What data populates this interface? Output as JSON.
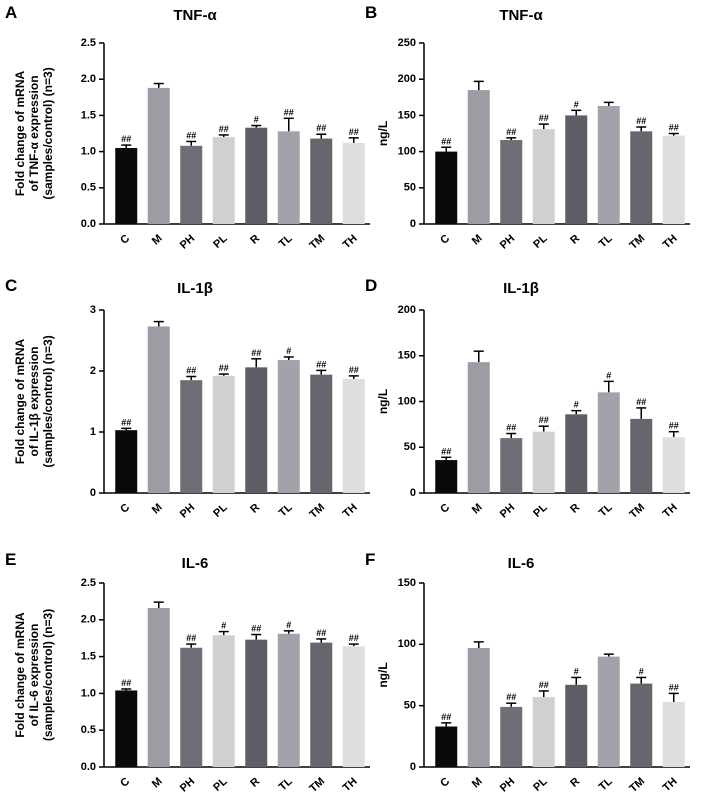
{
  "figure": {
    "colors": {
      "C": "#0a0a0a",
      "M": "#9c9ca4",
      "PH": "#6e6e76",
      "PL": "#d0d0d2",
      "R": "#5e5e66",
      "TL": "#a2a2aa",
      "TM": "#66666e",
      "TH": "#dedee0",
      "axis": "#000000"
    }
  },
  "chart_data": [
    {
      "panel": "A",
      "type": "bar",
      "title": "TNF-α",
      "ylabel_lines": [
        "Fold change of mRNA",
        "of TNF-α expression",
        "(samples/control) (n=3)"
      ],
      "xlabel": "",
      "categories": [
        "C",
        "M",
        "PH",
        "PL",
        "R",
        "TL",
        "TM",
        "TH"
      ],
      "values": [
        1.05,
        1.88,
        1.08,
        1.2,
        1.33,
        1.28,
        1.18,
        1.12
      ],
      "errors": [
        0.04,
        0.06,
        0.06,
        0.03,
        0.03,
        0.18,
        0.06,
        0.07
      ],
      "significance": [
        "##",
        "",
        "##",
        "##",
        "#",
        "##",
        "##",
        "##"
      ],
      "ylim": [
        0,
        2.5
      ],
      "yticks": [
        0.0,
        0.5,
        1.0,
        1.5,
        2.0,
        2.5
      ],
      "ytick_labels": [
        "0.0",
        "0.5",
        "1.0",
        "1.5",
        "2.0",
        "2.5"
      ]
    },
    {
      "panel": "B",
      "type": "bar",
      "title": "TNF-α",
      "ylabel_lines": [
        "ng/L"
      ],
      "xlabel": "",
      "categories": [
        "C",
        "M",
        "PH",
        "PL",
        "R",
        "TL",
        "TM",
        "TH"
      ],
      "values": [
        100,
        185,
        116,
        131,
        150,
        163,
        128,
        122
      ],
      "errors": [
        6,
        12,
        3,
        7,
        7,
        5,
        6,
        3
      ],
      "significance": [
        "##",
        "",
        "##",
        "##",
        "#",
        "",
        "##",
        "##"
      ],
      "ylim": [
        0,
        250
      ],
      "yticks": [
        0,
        50,
        100,
        150,
        200,
        250
      ],
      "ytick_labels": [
        "0",
        "50",
        "100",
        "150",
        "200",
        "250"
      ]
    },
    {
      "panel": "C",
      "type": "bar",
      "title": "IL-1β",
      "ylabel_lines": [
        "Fold change of mRNA",
        "of IL-1β expression",
        "(samples/control) (n=3)"
      ],
      "xlabel": "",
      "categories": [
        "C",
        "M",
        "PH",
        "PL",
        "R",
        "TL",
        "TM",
        "TH"
      ],
      "values": [
        1.03,
        2.73,
        1.85,
        1.92,
        2.06,
        2.18,
        1.94,
        1.87
      ],
      "errors": [
        0.03,
        0.08,
        0.06,
        0.03,
        0.14,
        0.05,
        0.07,
        0.05
      ],
      "significance": [
        "##",
        "",
        "##",
        "##",
        "##",
        "#",
        "##",
        "##"
      ],
      "ylim": [
        0,
        3
      ],
      "yticks": [
        0,
        1,
        2,
        3
      ],
      "ytick_labels": [
        "0",
        "1",
        "2",
        "3"
      ]
    },
    {
      "panel": "D",
      "type": "bar",
      "title": "IL-1β",
      "ylabel_lines": [
        "ng/L"
      ],
      "xlabel": "",
      "categories": [
        "C",
        "M",
        "PH",
        "PL",
        "R",
        "TL",
        "TM",
        "TH"
      ],
      "values": [
        36,
        143,
        60,
        67,
        86,
        110,
        81,
        61
      ],
      "errors": [
        3,
        12,
        5,
        6,
        4,
        12,
        12,
        6
      ],
      "significance": [
        "##",
        "",
        "##",
        "##",
        "#",
        "#",
        "##",
        "##"
      ],
      "ylim": [
        0,
        200
      ],
      "yticks": [
        0,
        50,
        100,
        150,
        200
      ],
      "ytick_labels": [
        "0",
        "50",
        "100",
        "150",
        "200"
      ]
    },
    {
      "panel": "E",
      "type": "bar",
      "title": "IL-6",
      "ylabel_lines": [
        "Fold change of mRNA",
        "of IL-6 expression",
        "(samples/control) (n=3)"
      ],
      "xlabel": "",
      "categories": [
        "C",
        "M",
        "PH",
        "PL",
        "R",
        "TL",
        "TM",
        "TH"
      ],
      "values": [
        1.04,
        2.16,
        1.62,
        1.79,
        1.73,
        1.81,
        1.69,
        1.64
      ],
      "errors": [
        0.02,
        0.08,
        0.05,
        0.05,
        0.07,
        0.04,
        0.05,
        0.03
      ],
      "significance": [
        "##",
        "",
        "##",
        "#",
        "##",
        "#",
        "##",
        "##"
      ],
      "ylim": [
        0,
        2.5
      ],
      "yticks": [
        0.0,
        0.5,
        1.0,
        1.5,
        2.0,
        2.5
      ],
      "ytick_labels": [
        "0.0",
        "0.5",
        "1.0",
        "1.5",
        "2.0",
        "2.5"
      ]
    },
    {
      "panel": "F",
      "type": "bar",
      "title": "IL-6",
      "ylabel_lines": [
        "ng/L"
      ],
      "xlabel": "",
      "categories": [
        "C",
        "M",
        "PH",
        "PL",
        "R",
        "TL",
        "TM",
        "TH"
      ],
      "values": [
        33,
        97,
        49,
        57,
        67,
        90,
        68,
        53
      ],
      "errors": [
        3,
        5,
        3,
        5,
        6,
        2,
        5,
        7
      ],
      "significance": [
        "##",
        "",
        "##",
        "##",
        "#",
        "",
        "#",
        "##"
      ],
      "ylim": [
        0,
        150
      ],
      "yticks": [
        0,
        50,
        100,
        150
      ],
      "ytick_labels": [
        "0",
        "50",
        "100",
        "150"
      ]
    }
  ]
}
